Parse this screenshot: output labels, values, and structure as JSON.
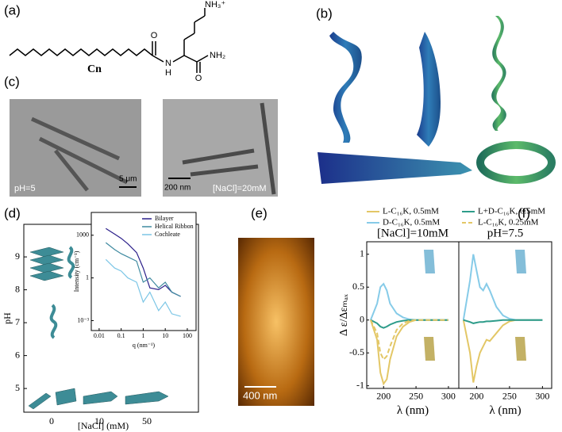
{
  "panel_labels": [
    "(a)",
    "(b)",
    "(c)",
    "(d)",
    "(e)",
    "(f)"
  ],
  "molecule": {
    "amine": "NH₃⁺",
    "tail": "Cn",
    "n": "N",
    "h": "H",
    "o1": "O",
    "o2": "O",
    "amide": "NH₂"
  },
  "micrographs": {
    "left_scale": "5 μm",
    "left_condition": "pH=5",
    "right_scale": "200 nm",
    "right_condition": "[NaCl]=20mM"
  },
  "afm": {
    "scale": "400 nm"
  },
  "chart_data": [
    {
      "type": "phase",
      "xlabel": "[NaCl] (mM)",
      "ylabel": "pH",
      "categories": [
        "0",
        "10",
        "50"
      ],
      "ylim": [
        4.28,
        9.99
      ],
      "yticks": [
        5,
        6,
        7,
        8,
        9
      ]
    },
    {
      "type": "line",
      "xlabel": "q (nm⁻¹)",
      "ylabel": "Intensity (cm⁻¹)",
      "xlog": true,
      "ylog": true,
      "xlim": [
        0.0044,
        250
      ],
      "ylim": [
        0.0002,
        40000
      ],
      "xticks": [
        0.01,
        0.1,
        1,
        10,
        100
      ],
      "yticks": [
        {
          "value": 0.001,
          "label": "10⁻³"
        },
        1,
        1000
      ],
      "legend": "upper-right",
      "x": [
        0.02,
        0.05,
        0.1,
        0.2,
        0.5,
        1,
        2,
        5,
        10,
        20,
        50
      ],
      "series": [
        {
          "name": "Bilayer",
          "color": "#2b1f8a",
          "values": [
            3000,
            1200,
            600,
            250,
            60,
            5,
            0.2,
            0.15,
            0.3,
            0.1,
            0.05
          ]
        },
        {
          "name": "Helical Ribbon",
          "color": "#3f8aa0",
          "values": [
            300,
            100,
            50,
            30,
            15,
            0.5,
            1,
            0.2,
            0.5,
            0.1,
            0.05
          ]
        },
        {
          "name": "Cochleate",
          "color": "#7cc6e6",
          "values": [
            20,
            5,
            3,
            1,
            0.5,
            0.02,
            0.1,
            0.005,
            0.02,
            0.003,
            0.002
          ]
        }
      ]
    },
    {
      "type": "line",
      "title": "[NaCl]=10mM",
      "xlabel": "λ (nm)",
      "ylabel": "Δ ε/Δεₘₐₓ",
      "xlim": [
        174,
        316
      ],
      "ylim": [
        -1.04,
        1.19
      ],
      "xticks": [
        200,
        250,
        300
      ],
      "yticks": [
        -1,
        -0.5,
        0,
        0.5,
        1
      ],
      "x": [
        180,
        190,
        195,
        200,
        205,
        210,
        220,
        230,
        240,
        250,
        260,
        280,
        300
      ],
      "series": [
        {
          "name": "L-C₁₆K, 0.5mM",
          "color": "#e3c766",
          "values": [
            0,
            -0.3,
            -0.8,
            -0.97,
            -0.9,
            -0.6,
            -0.25,
            -0.1,
            -0.03,
            0,
            0,
            0,
            0
          ]
        },
        {
          "name": "D-C₁₆K, 0.5mM",
          "color": "#86cbe8",
          "values": [
            0,
            0.25,
            0.5,
            0.55,
            0.45,
            0.25,
            0.1,
            0.04,
            0.01,
            0,
            0,
            0,
            0
          ]
        },
        {
          "name": "L+D-C₁₆K, 0.5mM",
          "color": "#2e9c8a",
          "values": [
            0,
            -0.05,
            -0.1,
            -0.12,
            -0.1,
            -0.07,
            -0.03,
            -0.01,
            0,
            0,
            0,
            0,
            0
          ]
        },
        {
          "name": "L-C₁₆K, 0.25mM",
          "color": "#e3c766",
          "dash": true,
          "values": [
            0,
            -0.2,
            -0.5,
            -0.6,
            -0.55,
            -0.4,
            -0.15,
            -0.05,
            -0.01,
            0,
            0,
            0,
            0
          ]
        }
      ]
    },
    {
      "type": "line",
      "title": "pH=7.5",
      "xlabel": "λ (nm)",
      "xlim": [
        173,
        314
      ],
      "ylim": [
        -1.04,
        1.19
      ],
      "xticks": [
        200,
        250,
        300
      ],
      "x": [
        180,
        190,
        195,
        200,
        205,
        210,
        215,
        220,
        230,
        240,
        250,
        260,
        300
      ],
      "series": [
        {
          "color": "#e3c766",
          "values": [
            0,
            -0.5,
            -0.95,
            -0.7,
            -0.5,
            -0.4,
            -0.3,
            -0.32,
            -0.2,
            -0.08,
            -0.02,
            0,
            0
          ]
        },
        {
          "color": "#86cbe8",
          "values": [
            0,
            0.6,
            1.0,
            0.75,
            0.5,
            0.45,
            0.55,
            0.45,
            0.2,
            0.07,
            0.02,
            0,
            0
          ]
        },
        {
          "color": "#2e9c8a",
          "values": [
            0,
            -0.03,
            -0.05,
            -0.04,
            -0.03,
            -0.03,
            -0.02,
            -0.02,
            -0.01,
            0,
            0,
            0,
            0
          ]
        }
      ]
    }
  ]
}
